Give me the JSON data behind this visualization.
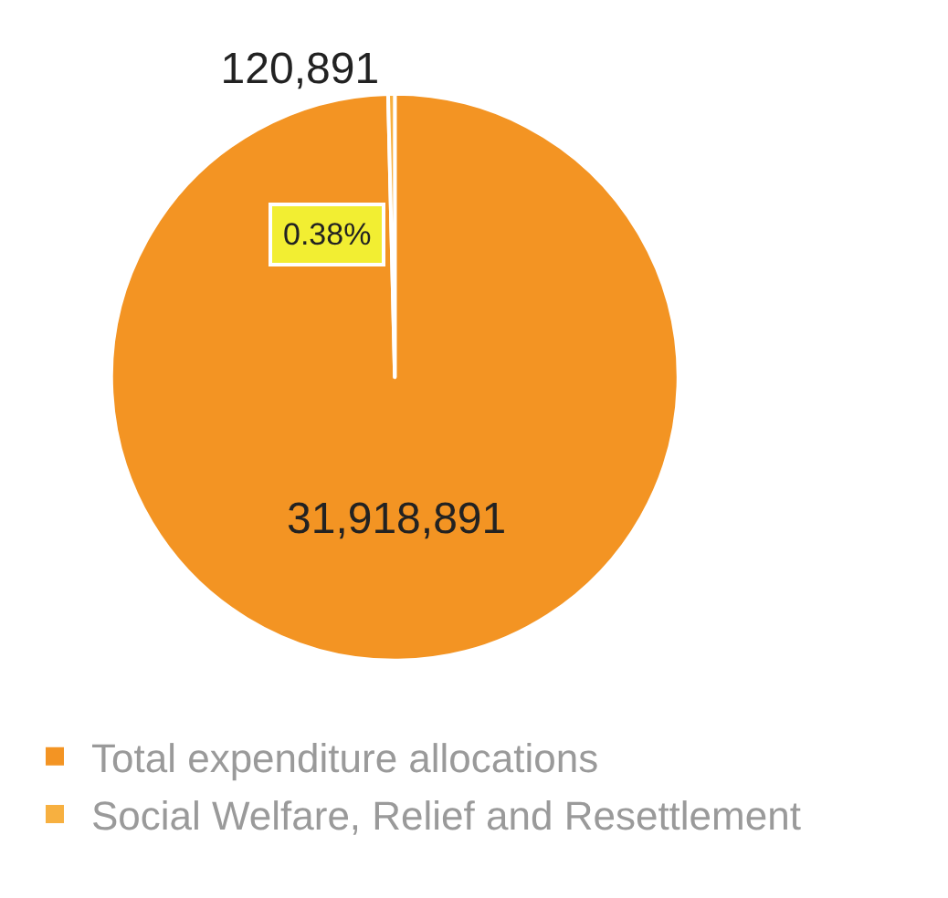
{
  "chart_data": {
    "type": "pie",
    "categories": [
      "Total expenditure allocations",
      "Social Welfare, Relief and Resettlement"
    ],
    "values": [
      31918891,
      120891
    ],
    "value_labels": [
      "31,918,891",
      "120,891"
    ],
    "colors": [
      "#f39423",
      "#f7b040"
    ],
    "annotations": [
      "0.38%"
    ],
    "legend": "bottom left"
  }
}
